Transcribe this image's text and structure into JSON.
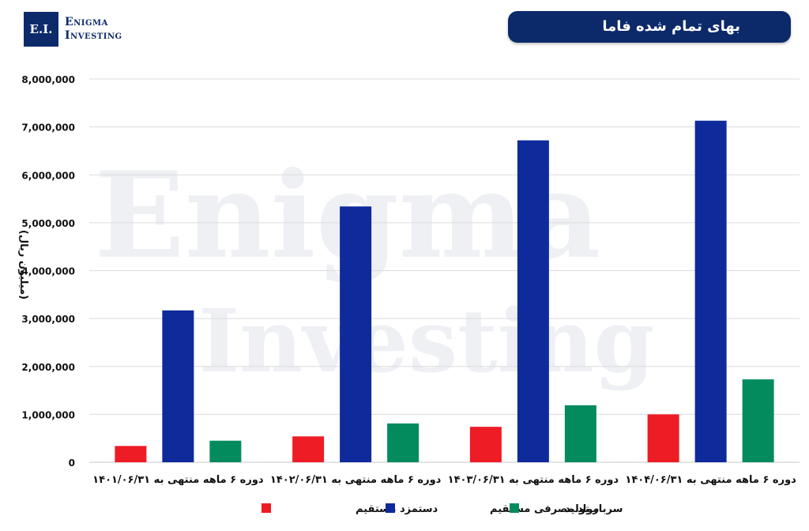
{
  "logo": {
    "badge": "E.I.",
    "line1": "Enigma",
    "line2": "Investing"
  },
  "watermark": {
    "line1": "Enigma",
    "line2": "Investing"
  },
  "chart_data": {
    "type": "bar",
    "title": "بهای تمام شده فاما",
    "ylabel": "(میلیون ریال)",
    "ylim": [
      0,
      8000000
    ],
    "yticks": [
      0,
      1000000,
      2000000,
      3000000,
      4000000,
      5000000,
      6000000,
      7000000,
      8000000
    ],
    "ytick_labels": [
      "0",
      "1,000,000",
      "2,000,000",
      "3,000,000",
      "4,000,000",
      "5,000,000",
      "6,000,000",
      "7,000,000",
      "8,000,000"
    ],
    "categories": [
      "دوره ۶ ماهه منتهی به ۱۴۰۱/۰۶/۳۱",
      "دوره ۶ ماهه منتهی به ۱۴۰۲/۰۶/۳۱",
      "دوره ۶ ماهه منتهی به ۱۴۰۳/۰۶/۳۱",
      "دوره ۶ ماهه منتهی به ۱۴۰۴/۰۶/۳۱"
    ],
    "series": [
      {
        "name": "دستمزد مستقیم",
        "color": "#ee1c25",
        "values": [
          340000,
          540000,
          740000,
          1000000
        ]
      },
      {
        "name": "مواد مصرفی مستقیم",
        "color": "#0e2a9b",
        "values": [
          3170000,
          5340000,
          6720000,
          7130000
        ]
      },
      {
        "name": "سربار تولید",
        "color": "#038b5e",
        "values": [
          450000,
          810000,
          1190000,
          1730000
        ]
      }
    ],
    "grid": true,
    "legend": "bottom"
  }
}
